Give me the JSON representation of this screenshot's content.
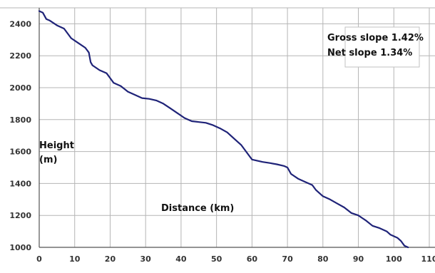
{
  "chart_data": {
    "type": "line",
    "xlabel": "Distance (km)",
    "ylabel_line1": "Height",
    "ylabel_line2": "(m)",
    "xlim": [
      0,
      110
    ],
    "ylim": [
      1000,
      2500
    ],
    "x_ticks": [
      0,
      10,
      20,
      30,
      40,
      50,
      60,
      70,
      80,
      90,
      100,
      110
    ],
    "y_ticks": [
      1000,
      1200,
      1400,
      1600,
      1800,
      2000,
      2200,
      2400
    ],
    "tick_labels_x": [
      "0",
      "10",
      "20",
      "30",
      "40",
      "50",
      "60",
      "70",
      "80",
      "90",
      "100",
      "110"
    ],
    "tick_labels_y": [
      "1000",
      "1200",
      "1400",
      "1600",
      "1800",
      "2000",
      "2200",
      "2400"
    ],
    "grid": true,
    "annotations": {
      "gross_slope": "Gross slope 1.42%",
      "net_slope": "Net slope 1.34%"
    },
    "colors": {
      "line": "#1f2378",
      "grid": "#b5b5b5",
      "axis": "#555555"
    },
    "series": [
      {
        "x": [
          0,
          1,
          2,
          3,
          5,
          7,
          9,
          11,
          13,
          14,
          14.5,
          15,
          16,
          17,
          19,
          20,
          21,
          23,
          25,
          27,
          29,
          31,
          33,
          35,
          37,
          39,
          41,
          43,
          45,
          47,
          49,
          51,
          53,
          55,
          57,
          58,
          59,
          60,
          61,
          63,
          65,
          67,
          69,
          70,
          71,
          73,
          75,
          77,
          78,
          80,
          82,
          84,
          86,
          88,
          90,
          91,
          92,
          94,
          96,
          98,
          99,
          101,
          102,
          103,
          104
        ],
        "values": [
          2480,
          2470,
          2430,
          2420,
          2390,
          2370,
          2310,
          2280,
          2250,
          2220,
          2160,
          2140,
          2125,
          2110,
          2090,
          2060,
          2030,
          2010,
          1975,
          1955,
          1935,
          1930,
          1920,
          1900,
          1870,
          1840,
          1810,
          1790,
          1785,
          1780,
          1765,
          1745,
          1720,
          1680,
          1640,
          1610,
          1580,
          1550,
          1545,
          1535,
          1528,
          1520,
          1510,
          1500,
          1460,
          1430,
          1410,
          1390,
          1360,
          1320,
          1300,
          1275,
          1250,
          1215,
          1200,
          1185,
          1170,
          1135,
          1120,
          1100,
          1080,
          1060,
          1040,
          1010,
          1000
        ]
      }
    ]
  }
}
